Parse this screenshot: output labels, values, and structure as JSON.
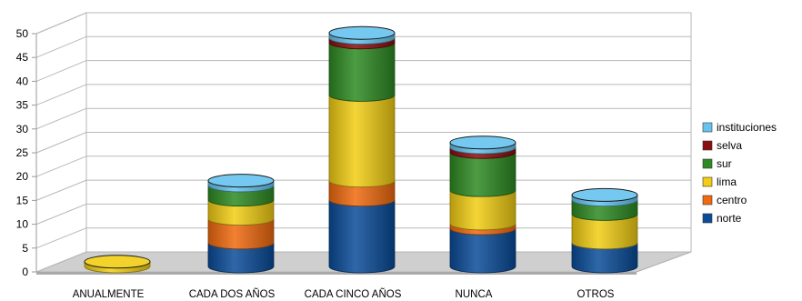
{
  "chart_data": {
    "type": "bar",
    "stacked": true,
    "style": "3d-cylinder",
    "categories": [
      "ANUALMENTE",
      "CADA DOS AÑOS",
      "CADA CINCO AÑOS",
      "NUNCA",
      "OTROS"
    ],
    "series": [
      {
        "name": "norte",
        "color": "#0a4c99",
        "values": [
          0,
          5,
          14,
          8,
          5
        ]
      },
      {
        "name": "centro",
        "color": "#f06a0f",
        "values": [
          0,
          5,
          4,
          1,
          0
        ]
      },
      {
        "name": "lima",
        "color": "#f2cd14",
        "values": [
          1,
          4,
          18,
          7,
          6
        ]
      },
      {
        "name": "sur",
        "color": "#2e8b23",
        "values": [
          0,
          3,
          11,
          8,
          3
        ]
      },
      {
        "name": "selva",
        "color": "#8b0d0d",
        "values": [
          0,
          0,
          1,
          1,
          0
        ]
      },
      {
        "name": "instituciones",
        "color": "#66c3ee",
        "values": [
          0,
          1,
          1,
          1,
          1
        ]
      }
    ],
    "yticks": [
      0,
      5,
      10,
      15,
      20,
      25,
      30,
      35,
      40,
      45,
      50
    ],
    "ylim": [
      0,
      50
    ],
    "grid": true,
    "legend": "right",
    "title": "",
    "xlabel": "",
    "ylabel": ""
  }
}
